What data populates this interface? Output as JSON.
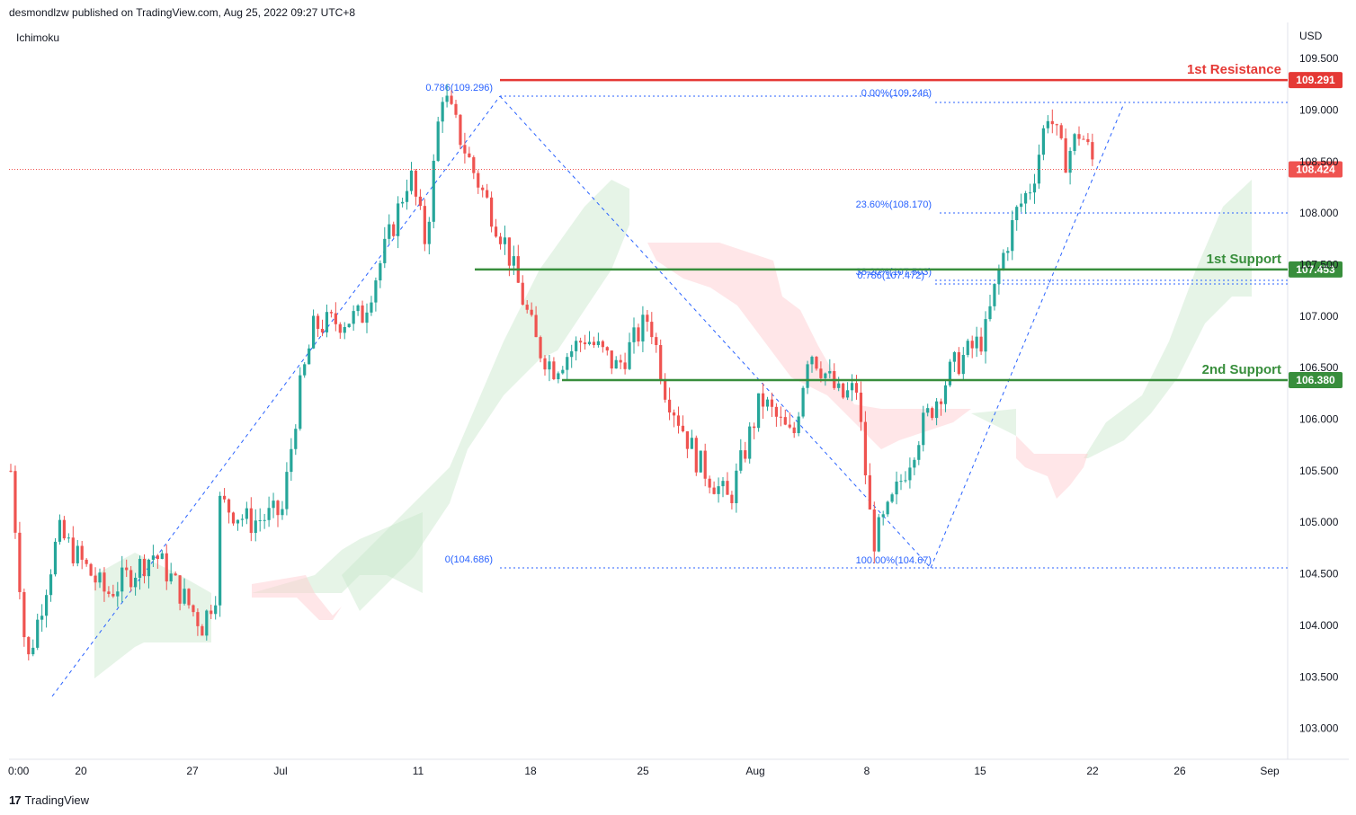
{
  "header": {
    "publisher": "desmondlzw published on TradingView.com, Aug 25, 2022 09:27 UTC+8"
  },
  "indicator": {
    "name": "Ichimoku"
  },
  "footer": {
    "brand": "TradingView",
    "logo_glyph": "17"
  },
  "chart_data": {
    "type": "candlestick",
    "currency": "USD",
    "ylim": [
      102.7,
      109.85
    ],
    "y_ticks": [
      "109.500",
      "109.000",
      "108.500",
      "108.000",
      "107.500",
      "107.000",
      "106.500",
      "106.000",
      "105.500",
      "105.000",
      "104.500",
      "104.000",
      "103.500",
      "103.000"
    ],
    "x_ticks": [
      "0:00",
      "20",
      "27",
      "Jul",
      "11",
      "18",
      "25",
      "Aug",
      "8",
      "15",
      "22",
      "26",
      "Sep"
    ],
    "last_price": "108.424",
    "levels": [
      {
        "name": "1st Resistance",
        "value": "109.291",
        "color": "#e53935"
      },
      {
        "name": "1st Support",
        "value": "107.453",
        "color": "#388e3c"
      },
      {
        "name": "2nd Support",
        "value": "106.380",
        "color": "#388e3c"
      }
    ],
    "fib_labels": [
      "0.786(109.296)",
      "0(104.686)",
      "0.00%(109.246)",
      "23.60%(108.170)",
      "38.20%(107.503)",
      "0.786(107.472)",
      "100.00%(104.67)"
    ],
    "price_path": [
      [
        "Jun 17",
        105.5
      ],
      [
        "Jun 18",
        103.6
      ],
      [
        "Jun 20",
        104.9
      ],
      [
        "Jun 23",
        104.3
      ],
      [
        "Jun 26",
        104.7
      ],
      [
        "Jun 29",
        104.0
      ],
      [
        "Jun 30",
        104.4
      ],
      [
        "Jul 1",
        105.2
      ],
      [
        "Jul 3",
        105.0
      ],
      [
        "Jul 5",
        105.1
      ],
      [
        "Jul 6",
        106.2
      ],
      [
        "Jul 7",
        106.9
      ],
      [
        "Jul 10",
        107.0
      ],
      [
        "Jul 12",
        107.9
      ],
      [
        "Jul 13",
        108.4
      ],
      [
        "Jul 14",
        107.7
      ],
      [
        "Jul 15",
        109.2
      ],
      [
        "Jul 17",
        108.4
      ],
      [
        "Jul 19",
        107.7
      ],
      [
        "Jul 21",
        106.7
      ],
      [
        "Jul 22",
        106.5
      ],
      [
        "Jul 24",
        106.8
      ],
      [
        "Jul 26",
        106.5
      ],
      [
        "Jul 28",
        107.0
      ],
      [
        "Jul 29",
        106.3
      ],
      [
        "Jul 31",
        105.6
      ],
      [
        "Aug 2",
        105.2
      ],
      [
        "Aug 4",
        106.2
      ],
      [
        "Aug 6",
        105.8
      ],
      [
        "Aug 7",
        106.7
      ],
      [
        "Aug 9",
        106.2
      ],
      [
        "Aug 10",
        106.3
      ],
      [
        "Aug 11",
        104.8
      ],
      [
        "Aug 12",
        105.1
      ],
      [
        "Aug 14",
        105.9
      ],
      [
        "Aug 16",
        106.5
      ],
      [
        "Aug 18",
        106.8
      ],
      [
        "Aug 19",
        107.5
      ],
      [
        "Aug 20",
        108.0
      ],
      [
        "Aug 21",
        108.3
      ],
      [
        "Aug 22",
        109.0
      ],
      [
        "Aug 23",
        108.5
      ],
      [
        "Aug 24",
        108.8
      ],
      [
        "Aug 25",
        108.42
      ]
    ]
  }
}
